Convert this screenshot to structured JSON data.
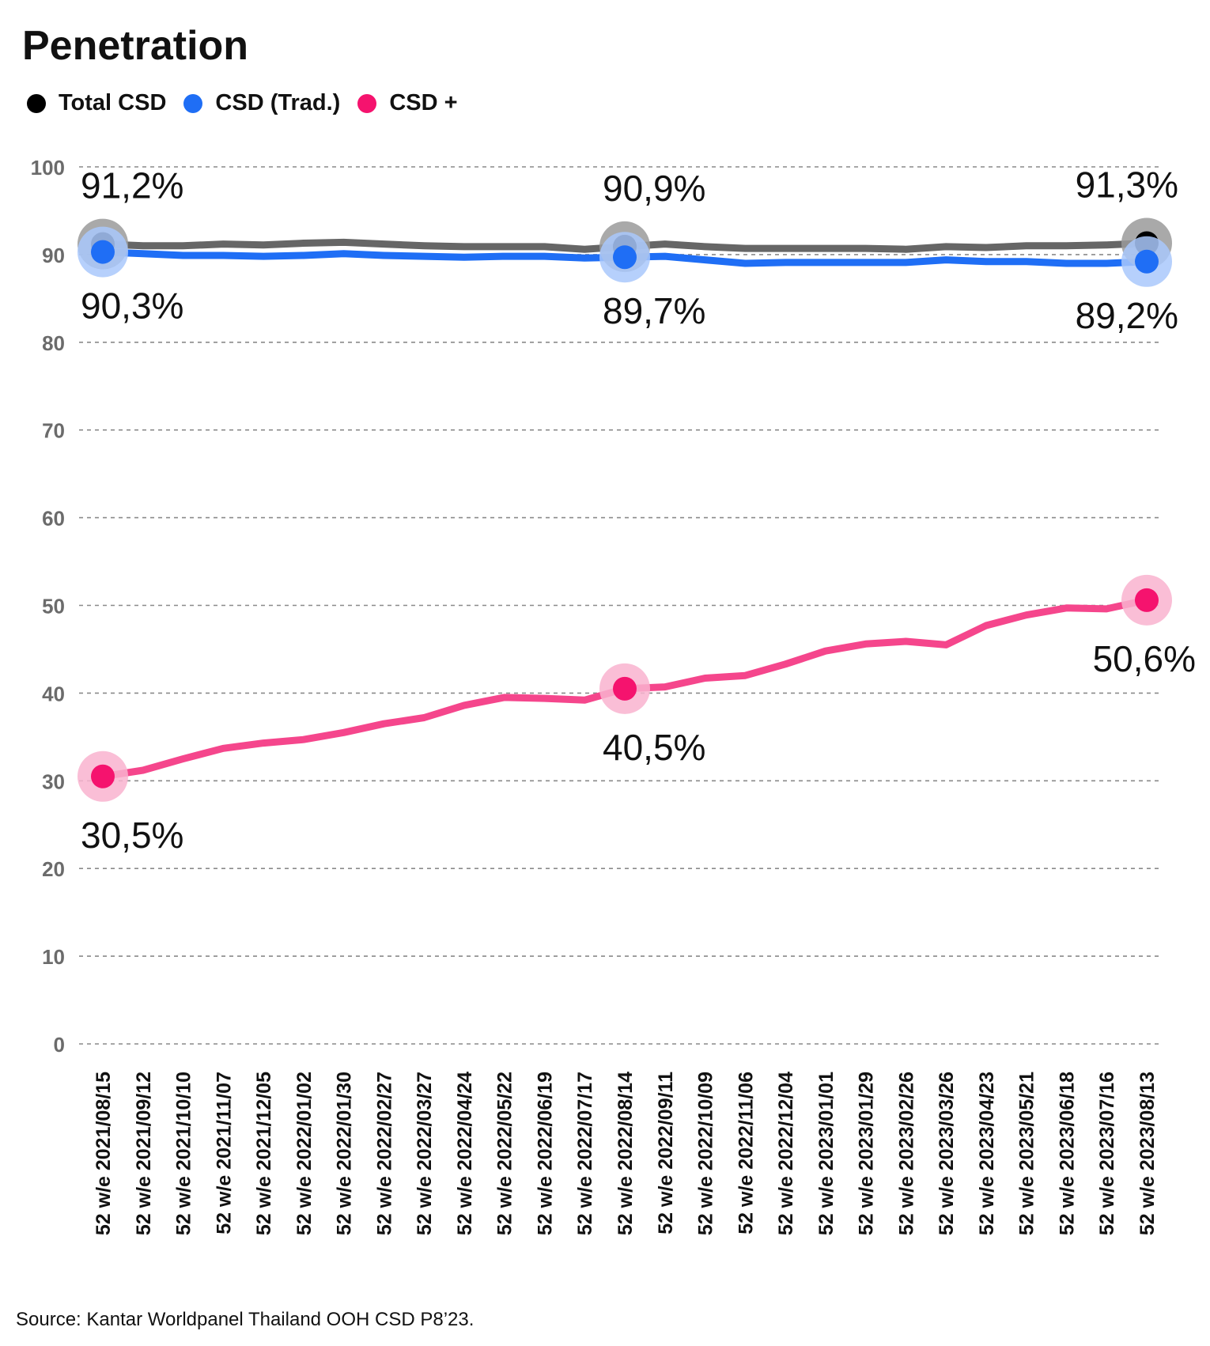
{
  "title": "Penetration",
  "source": "Source: Kantar Worldpanel Thailand OOH CSD P8’23.",
  "legend": [
    {
      "label": "Total CSD",
      "color": "#000000"
    },
    {
      "label": "CSD (Trad.)",
      "color": "#1f6ef5"
    },
    {
      "label": "CSD +",
      "color": "#f5136e"
    }
  ],
  "chart_data": {
    "type": "line",
    "title": "Penetration",
    "xlabel": "",
    "ylabel": "",
    "ylim": [
      0,
      100
    ],
    "yticks": [
      0,
      10,
      20,
      30,
      40,
      50,
      60,
      70,
      80,
      90,
      100
    ],
    "grid": true,
    "legend_position": "top-left",
    "categories": [
      "52 w/e 2021/08/15",
      "52 w/e 2021/09/12",
      "52 w/e 2021/10/10",
      "52 w/e 2021/11/07",
      "52 w/e 2021/12/05",
      "52 w/e 2022/01/02",
      "52 w/e 2022/01/30",
      "52 w/e 2022/02/27",
      "52 w/e 2022/03/27",
      "52 w/e 2022/04/24",
      "52 w/e 2022/05/22",
      "52 w/e 2022/06/19",
      "52 w/e 2022/07/17",
      "52 w/e 2022/08/14",
      "52 w/e 2022/09/11",
      "52 w/e 2022/10/09",
      "52 w/e 2022/11/06",
      "52 w/e 2022/12/04",
      "52 w/e 2023/01/01",
      "52 w/e 2023/01/29",
      "52 w/e 2023/02/26",
      "52 w/e 2023/03/26",
      "52 w/e 2023/04/23",
      "52 w/e 2023/05/21",
      "52 w/e 2023/06/18",
      "52 w/e 2023/07/16",
      "52 w/e 2023/08/13"
    ],
    "series": [
      {
        "name": "Total CSD",
        "color": "#666666",
        "marker_color": "#000000",
        "halo_color": "#9a9a9a",
        "values": [
          91.2,
          91.0,
          91.0,
          91.2,
          91.1,
          91.3,
          91.4,
          91.2,
          91.0,
          90.9,
          90.9,
          90.9,
          90.6,
          90.9,
          91.2,
          90.9,
          90.7,
          90.7,
          90.7,
          90.7,
          90.6,
          90.9,
          90.8,
          91.0,
          91.0,
          91.1,
          91.3
        ],
        "labels": [
          {
            "index": 0,
            "text": "91,2%"
          },
          {
            "index": 13,
            "text": "90,9%"
          },
          {
            "index": 26,
            "text": "91,3%"
          }
        ]
      },
      {
        "name": "CSD (Trad.)",
        "color": "#1f6ef5",
        "marker_color": "#1f6ef5",
        "halo_color": "#a9c8fb",
        "values": [
          90.3,
          90.1,
          89.9,
          89.9,
          89.8,
          89.9,
          90.1,
          89.9,
          89.8,
          89.7,
          89.8,
          89.8,
          89.6,
          89.7,
          89.8,
          89.4,
          89.0,
          89.1,
          89.1,
          89.1,
          89.1,
          89.4,
          89.2,
          89.2,
          89.0,
          89.0,
          89.2
        ],
        "labels": [
          {
            "index": 0,
            "text": "90,3%"
          },
          {
            "index": 13,
            "text": "89,7%"
          },
          {
            "index": 26,
            "text": "89,2%"
          }
        ]
      },
      {
        "name": "CSD +",
        "color": "#f5468c",
        "marker_color": "#f5136e",
        "halo_color": "#f9b3cf",
        "values": [
          30.5,
          31.2,
          32.5,
          33.7,
          34.3,
          34.7,
          35.5,
          36.5,
          37.2,
          38.6,
          39.5,
          39.4,
          39.2,
          40.5,
          40.7,
          41.7,
          42.0,
          43.3,
          44.8,
          45.6,
          45.9,
          45.5,
          47.7,
          48.9,
          49.7,
          49.6,
          50.6
        ],
        "labels": [
          {
            "index": 0,
            "text": "30,5%"
          },
          {
            "index": 13,
            "text": "40,5%"
          },
          {
            "index": 26,
            "text": "50,6%"
          }
        ]
      }
    ]
  }
}
